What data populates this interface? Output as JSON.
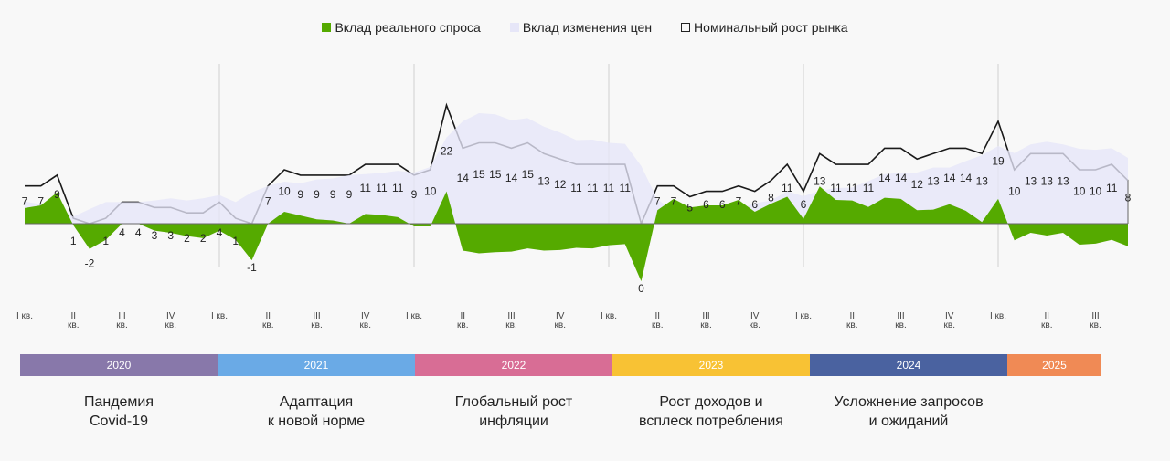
{
  "chart_data": {
    "type": "area",
    "legend_position": "top",
    "legend": [
      {
        "label": "Вклад реального спроса",
        "color": "#55aa00"
      },
      {
        "label": "Вклад изменения цен",
        "color": "#e6e6f8"
      },
      {
        "label": "Номинальный рост рынка",
        "color": "#222222"
      }
    ],
    "x_start": "2020-01",
    "x_end": "2025-09",
    "frequency": "monthly",
    "quarter_ticks": [
      "I кв.",
      "II кв.",
      "III кв.",
      "IV кв."
    ],
    "years": [
      {
        "label": "2020",
        "color": "#8878aa",
        "caption": "Пандемия\nCovid-19"
      },
      {
        "label": "2021",
        "color": "#6aaae6",
        "caption": "Адаптация\nк новой норме"
      },
      {
        "label": "2022",
        "color": "#d86d95",
        "caption": "Глобальный рост\nинфляции"
      },
      {
        "label": "2023",
        "color": "#f8c234",
        "caption": "Рост доходов и\nвсплеск потребления"
      },
      {
        "label": "2024",
        "color": "#4a62a0",
        "caption": "Усложнение запросов\nи ожиданий"
      },
      {
        "label": "2025",
        "color": "#f08a55",
        "caption": ""
      }
    ],
    "series": [
      {
        "name": "Номинальный рост рынка",
        "values": [
          7,
          7,
          9,
          1,
          -2,
          1,
          4,
          4,
          3,
          3,
          2,
          2,
          4,
          1,
          -1,
          7,
          10,
          9,
          9,
          9,
          9,
          11,
          11,
          11,
          9,
          10,
          22,
          14,
          15,
          15,
          14,
          15,
          13,
          12,
          11,
          11,
          11,
          11,
          0,
          7,
          7,
          5,
          6,
          6,
          7,
          6,
          8,
          11,
          6,
          13,
          11,
          11,
          11,
          14,
          14,
          12,
          13,
          14,
          14,
          13,
          19,
          10,
          13,
          13,
          13,
          10,
          10,
          11,
          8
        ]
      },
      {
        "name": "Вклад реального спроса",
        "values": [
          2.9,
          3.4,
          5.8,
          -0.3,
          -4.7,
          -3,
          0,
          0,
          -1.3,
          -1.7,
          -2.3,
          -2.7,
          -1.3,
          -3,
          -6.8,
          0,
          2.2,
          1.5,
          0.8,
          0.6,
          0,
          1.8,
          1.6,
          1.2,
          -0.5,
          -0.5,
          6,
          -5,
          -5.5,
          -5.3,
          -5.2,
          -4.6,
          -5,
          -4.9,
          -4.5,
          -4.6,
          -4,
          -3.8,
          -10.7,
          2.5,
          4.6,
          3,
          3.4,
          3.4,
          4.4,
          2.2,
          3.7,
          5,
          0.9,
          6.9,
          4.4,
          4.3,
          3.1,
          4.8,
          4.6,
          2.5,
          2.6,
          3.6,
          2.4,
          0.3,
          4.6,
          -3.1,
          -1.7,
          -2.2,
          -1.7,
          -3.9,
          -3.7,
          -3,
          -4.2
        ]
      },
      {
        "name": "Вклад изменения цен",
        "values": [
          4.1,
          3.6,
          3.2,
          1.3,
          2.7,
          4,
          4,
          4,
          4.3,
          4.7,
          4.3,
          4.7,
          5.3,
          4,
          5.8,
          7,
          7.8,
          7.5,
          8.2,
          8.4,
          9,
          9.2,
          9.4,
          9.8,
          9.5,
          10.5,
          16,
          19,
          20.5,
          20.3,
          19.2,
          19.6,
          18,
          16.9,
          15.5,
          15.6,
          15,
          14.8,
          10.7,
          4.5,
          2.4,
          2,
          2.6,
          2.6,
          2.6,
          3.8,
          4.3,
          6,
          5.1,
          6.1,
          6.6,
          6.7,
          7.9,
          9.2,
          9.4,
          9.5,
          10.4,
          10.4,
          11.6,
          12.7,
          14.4,
          13.1,
          14.7,
          15.2,
          14.7,
          13.9,
          13.7,
          14,
          12.2
        ]
      }
    ]
  }
}
